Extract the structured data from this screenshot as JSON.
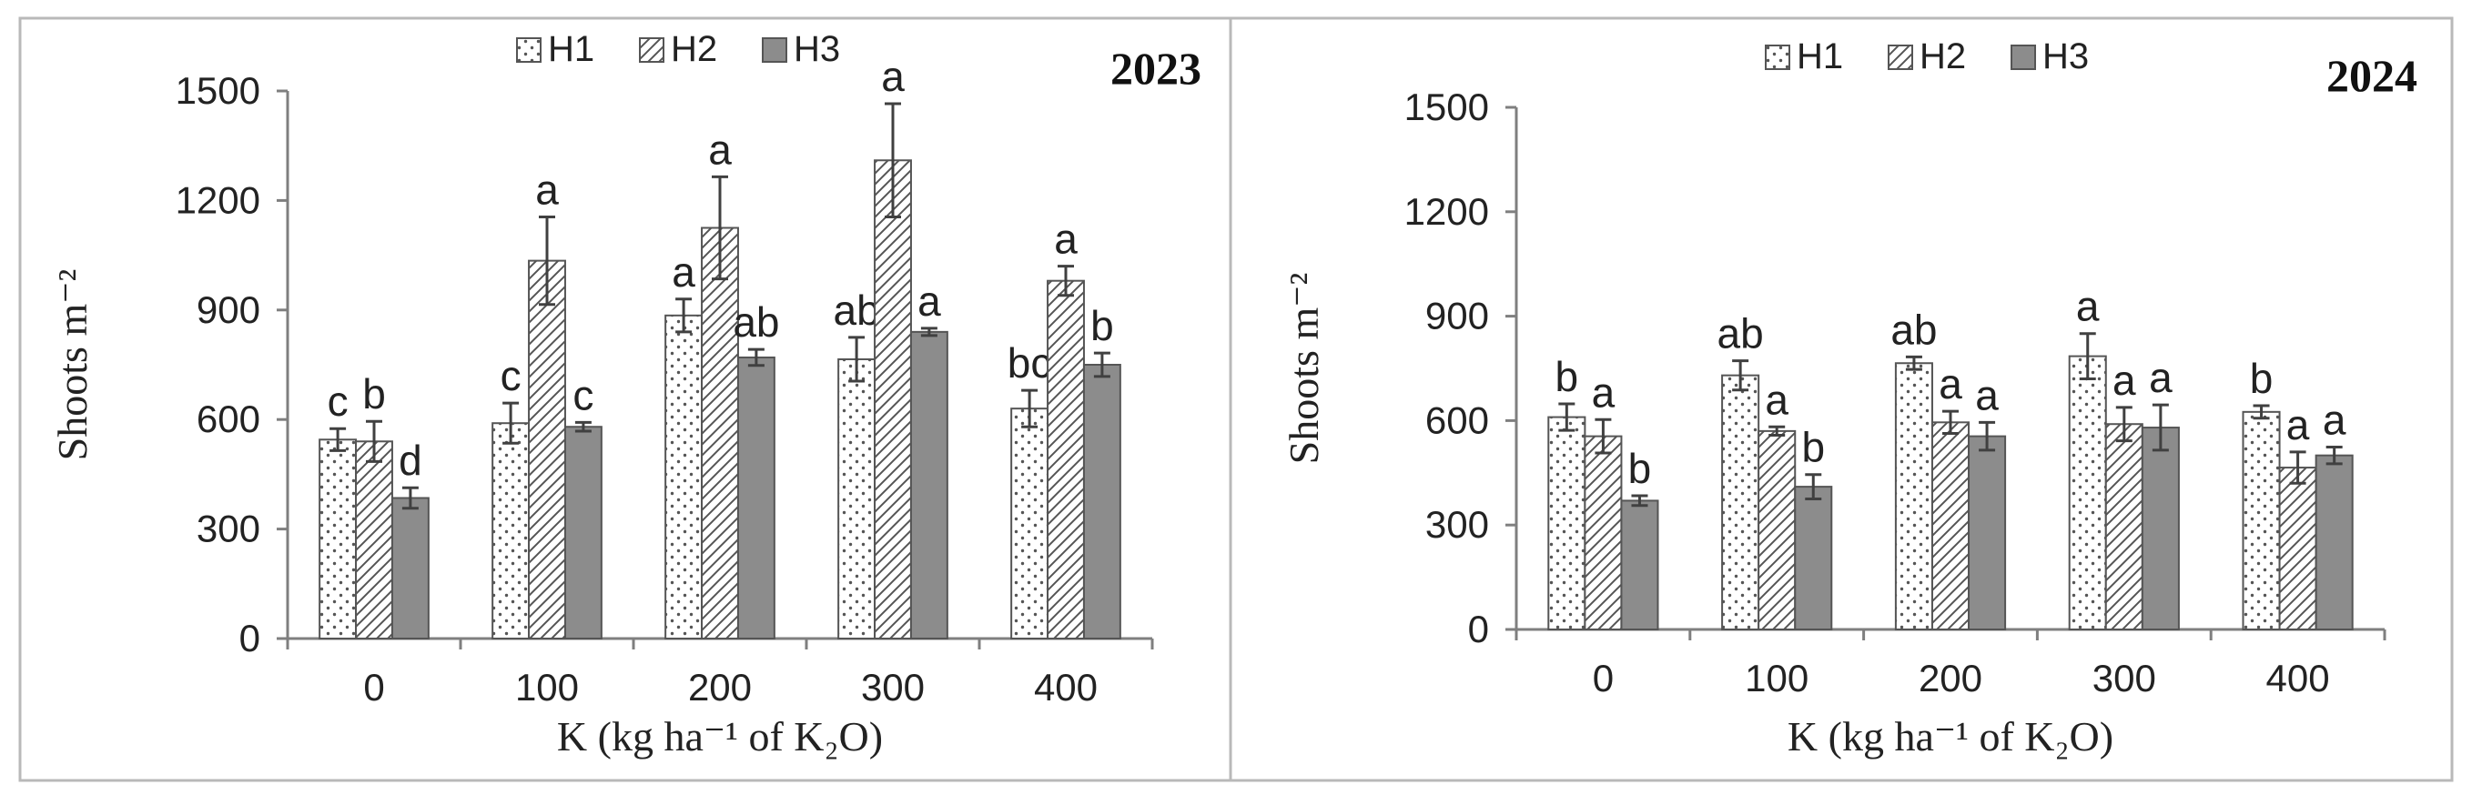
{
  "figure_title": "",
  "legend": [
    {
      "name": "H1",
      "pattern": "dots"
    },
    {
      "name": "H2",
      "pattern": "hatch"
    },
    {
      "name": "H3",
      "pattern": "solid"
    }
  ],
  "colors": {
    "h3_fill": "#8c8c8c",
    "axis": "#7f7f7f",
    "frame": "#b9b9b9",
    "pattern_stroke": "#555555"
  },
  "chart_data": [
    {
      "type": "bar",
      "title": "2023",
      "xlabel": "K (kg ha⁻¹ of K₂O)",
      "ylabel": "Shoots m⁻²",
      "categories": [
        "0",
        "100",
        "200",
        "300",
        "400"
      ],
      "ylim": [
        0,
        1500
      ],
      "yticks": [
        0,
        300,
        600,
        900,
        1200,
        1500
      ],
      "grid": false,
      "legend_position": "top-center",
      "series": [
        {
          "name": "H1",
          "values": [
            545,
            590,
            885,
            765,
            630
          ],
          "errors": [
            30,
            55,
            45,
            60,
            50
          ],
          "letters": [
            "c",
            "c",
            "a",
            "ab",
            "bc"
          ]
        },
        {
          "name": "H2",
          "values": [
            540,
            1035,
            1125,
            1310,
            980
          ],
          "errors": [
            55,
            120,
            140,
            155,
            40
          ],
          "letters": [
            "b",
            "a",
            "a",
            "a",
            "a"
          ]
        },
        {
          "name": "H3",
          "values": [
            385,
            580,
            770,
            840,
            750
          ],
          "errors": [
            28,
            12,
            22,
            10,
            32
          ],
          "letters": [
            "d",
            "c",
            "ab",
            "a",
            "b"
          ]
        }
      ]
    },
    {
      "type": "bar",
      "title": "2024",
      "xlabel": "K (kg ha⁻¹ of K₂O)",
      "ylabel": "Shoots m⁻²",
      "categories": [
        "0",
        "100",
        "200",
        "300",
        "400"
      ],
      "ylim": [
        0,
        1500
      ],
      "yticks": [
        0,
        300,
        600,
        900,
        1200,
        1500
      ],
      "grid": false,
      "legend_position": "top-center",
      "series": [
        {
          "name": "H1",
          "values": [
            610,
            730,
            765,
            785,
            625
          ],
          "errors": [
            38,
            42,
            18,
            65,
            18
          ],
          "letters": [
            "b",
            "ab",
            "ab",
            "a",
            "b"
          ]
        },
        {
          "name": "H2",
          "values": [
            555,
            570,
            595,
            590,
            465
          ],
          "errors": [
            48,
            12,
            32,
            48,
            45
          ],
          "letters": [
            "a",
            "a",
            "a",
            "a",
            "a"
          ]
        },
        {
          "name": "H3",
          "values": [
            370,
            410,
            555,
            580,
            500
          ],
          "errors": [
            14,
            35,
            40,
            65,
            24
          ],
          "letters": [
            "b",
            "b",
            "a",
            "a",
            "a"
          ]
        }
      ]
    }
  ]
}
